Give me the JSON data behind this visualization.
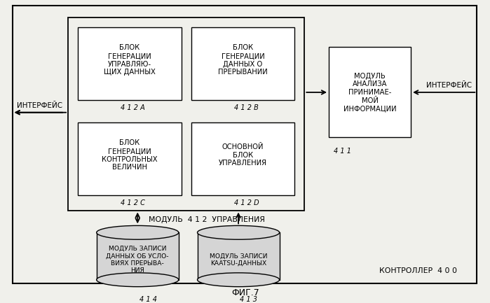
{
  "bg_color": "#f0f0eb",
  "white": "#ffffff",
  "black": "#000000",
  "title": "ФИГ.7",
  "controller_label": "КОНТРОЛЛЕР  4 0 0",
  "module_412_label": "МОДУЛЬ  4 1 2  УПРАВЛЕНИЯ",
  "box_412A_label": "БЛОК\nГЕНЕРАЦИИ\nУПРАВЛЯЮ-\nЩИХ ДАННЫХ",
  "box_412A_id": "4 1 2 A",
  "box_412B_label": "БЛОК\nГЕНЕРАЦИИ\nДАННЫХ О\nПРЕРЫВАНИИ",
  "box_412B_id": "4 1 2 B",
  "box_412C_label": "БЛОК\nГЕНЕРАЦИИ\nКОНТРОЛЬНЫХ\nВЕЛИЧИН",
  "box_412C_id": "4 1 2 C",
  "box_412D_label": "ОСНОВНОЙ\nБЛОК\nУПРАВЛЕНИЯ",
  "box_412D_id": "4 1 2 D",
  "box_411_label": "МОДУЛЬ\nАНАЛИЗА\nПРИНИМАЕ-\nМОЙ\nИНФОРМАЦИИ",
  "box_411_id": "4 1 1",
  "db_414_label": "МОДУЛЬ ЗАПИСИ\nДАННЫХ ОБ УСЛО-\nВИЯХ ПРЕРЫВА-\nНИЯ",
  "db_414_id": "4 1 4",
  "db_413_label": "МОДУЛЬ ЗАПИСИ\nKAATSU-ДАННЫХ",
  "db_413_id": "4 1 3",
  "interface_left": "ИНТЕРФЕЙС",
  "interface_right": "ИНТЕРФЕЙС"
}
